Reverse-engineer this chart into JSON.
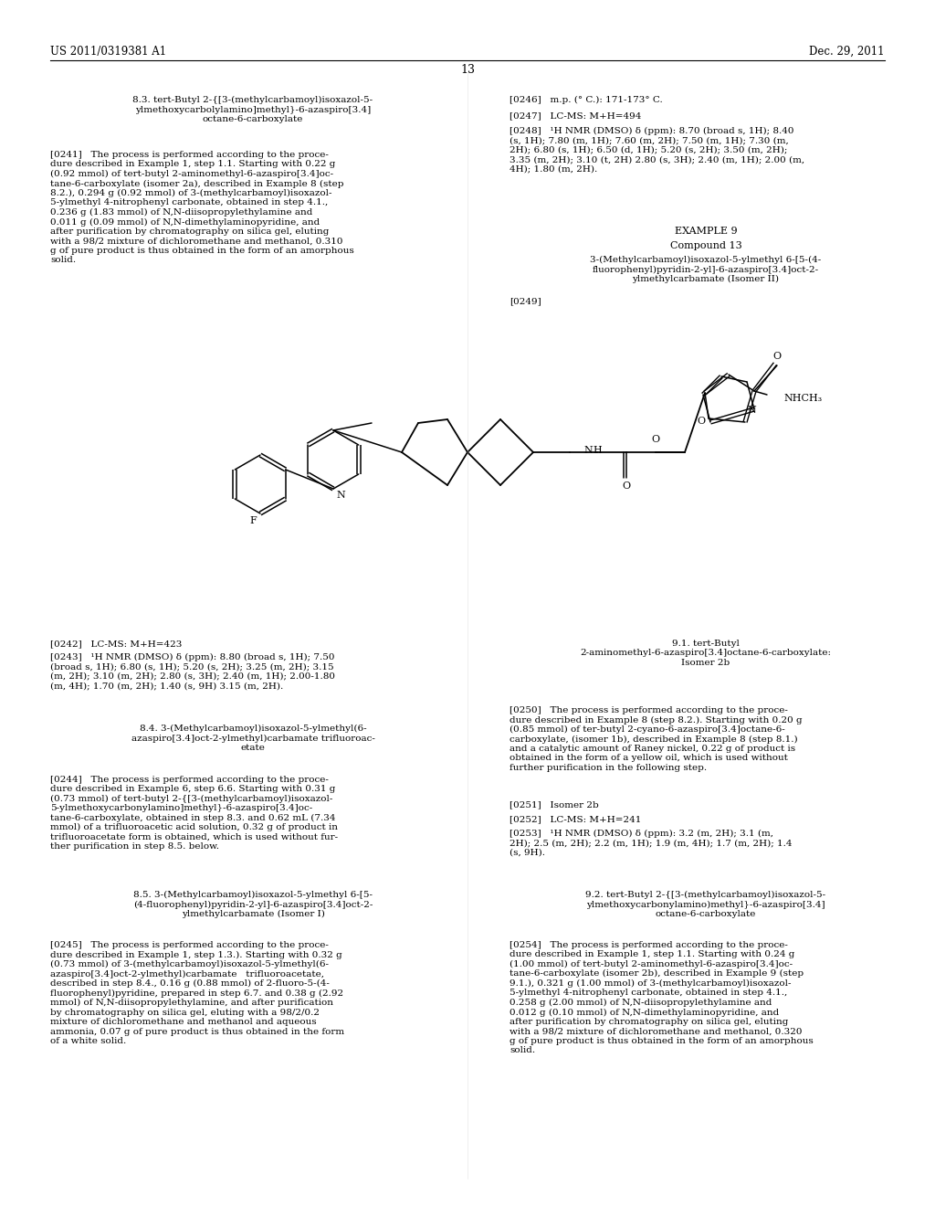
{
  "bg_color": "#ffffff",
  "header_left": "US 2011/0319381 A1",
  "header_right": "Dec. 29, 2011",
  "page_number": "13"
}
